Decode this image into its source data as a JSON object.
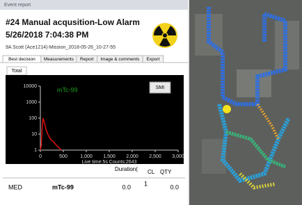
{
  "window": {
    "title": "Event report"
  },
  "header": {
    "title": "#24 Manual acqusition-Low Alarm",
    "datetime": "5/26/2018 7:04:38 PM",
    "source": "9A Scott (Ace1214)-Mission_2018-05-26_10-27-55"
  },
  "tabs": [
    "Best decision",
    "Measurements",
    "Report",
    "Image & comments",
    "Export"
  ],
  "subtab": "Total",
  "smi_button": "SMI",
  "chart_data": {
    "type": "line",
    "annotation": "mTc-99",
    "footer": "Live time:5s  Counts:2643",
    "x": [
      0,
      20,
      40,
      60,
      80,
      100,
      120,
      140,
      160,
      200,
      250,
      300,
      350,
      400,
      450
    ],
    "series": [
      {
        "color": "#e01010",
        "values": [
          1,
          2,
          30,
          100,
          60,
          40,
          20,
          15,
          10,
          6,
          4,
          3,
          2,
          1.5,
          1
        ]
      }
    ],
    "annotation_color": "#1fa01f",
    "xlim": [
      0,
      3000
    ],
    "xticks": [
      0,
      500,
      {
        "value": 1000,
        "label": "1,000"
      },
      {
        "value": 1500,
        "label": "1,500"
      },
      {
        "value": 2000,
        "label": "2,000"
      },
      {
        "value": 2500,
        "label": "2,500"
      },
      {
        "value": 3000,
        "label": "3,000"
      }
    ],
    "ylim": [
      1,
      10000
    ],
    "yticks": [
      1,
      10,
      100,
      1000,
      10000
    ],
    "log_y": true
  },
  "table": {
    "headers": [
      "Duration(",
      "CL",
      "QTY"
    ],
    "row": [
      "MED",
      "mTc-99",
      "0.0",
      "1",
      "0.0"
    ]
  }
}
